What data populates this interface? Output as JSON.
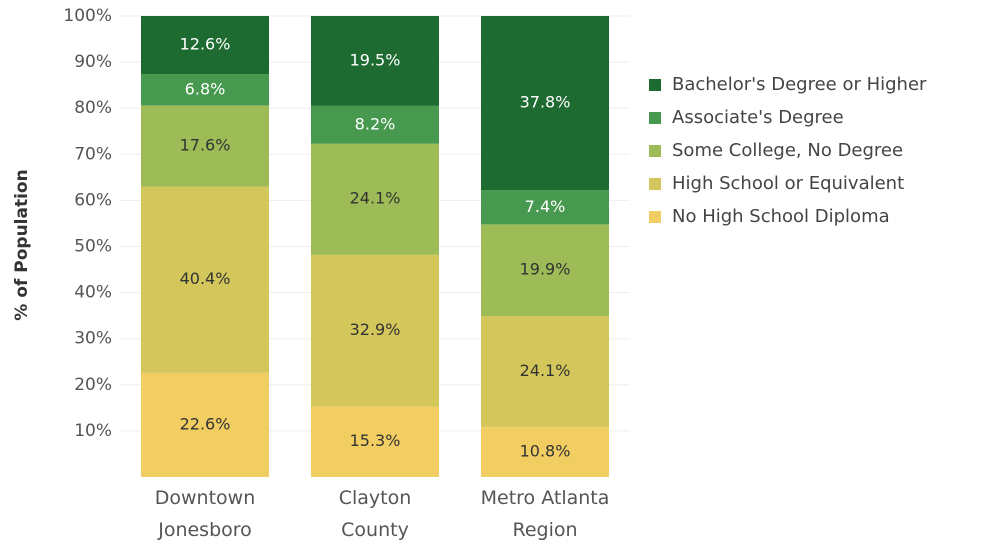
{
  "chart_data": {
    "type": "stacked_bar",
    "y_label": "% of Population",
    "categories": [
      "Downtown Jonesboro",
      "Clayton County",
      "Metro Atlanta Region"
    ],
    "series": [
      {
        "name": "No High School Diploma",
        "color": "#f2ce62",
        "values": [
          22.6,
          15.3,
          10.8
        ],
        "value_labels": [
          "22.6%",
          "15.3%",
          "10.8%"
        ]
      },
      {
        "name": "High School or Equivalent",
        "color": "#d3c65b",
        "values": [
          40.4,
          32.9,
          24.1
        ],
        "value_labels": [
          "40.4%",
          "32.9%",
          "24.1%"
        ]
      },
      {
        "name": "Some College, No Degree",
        "color": "#9dbb56",
        "values": [
          17.6,
          24.1,
          19.9
        ],
        "value_labels": [
          "17.6%",
          "24.1%",
          "19.9%"
        ]
      },
      {
        "name": "Associate's Degree",
        "color": "#46994e",
        "values": [
          6.8,
          8.2,
          7.4
        ],
        "value_labels": [
          "6.8%",
          "8.2%",
          "7.4%"
        ]
      },
      {
        "name": "Bachelor's Degree or Higher",
        "color": "#1e6b31",
        "values": [
          12.6,
          19.5,
          37.8
        ],
        "value_labels": [
          "12.6%",
          "19.5%",
          "37.8%"
        ]
      }
    ],
    "ylim": [
      0,
      100
    ],
    "yticks": [
      {
        "value": 10,
        "label": "10%"
      },
      {
        "value": 20,
        "label": "20%"
      },
      {
        "value": 30,
        "label": "30%"
      },
      {
        "value": 40,
        "label": "40%"
      },
      {
        "value": 50,
        "label": "50%"
      },
      {
        "value": 60,
        "label": "60%"
      },
      {
        "value": 70,
        "label": "70%"
      },
      {
        "value": 80,
        "label": "80%"
      },
      {
        "value": 90,
        "label": "90%"
      },
      {
        "value": 100,
        "label": "100%"
      }
    ],
    "grid": true,
    "legend": "right"
  }
}
